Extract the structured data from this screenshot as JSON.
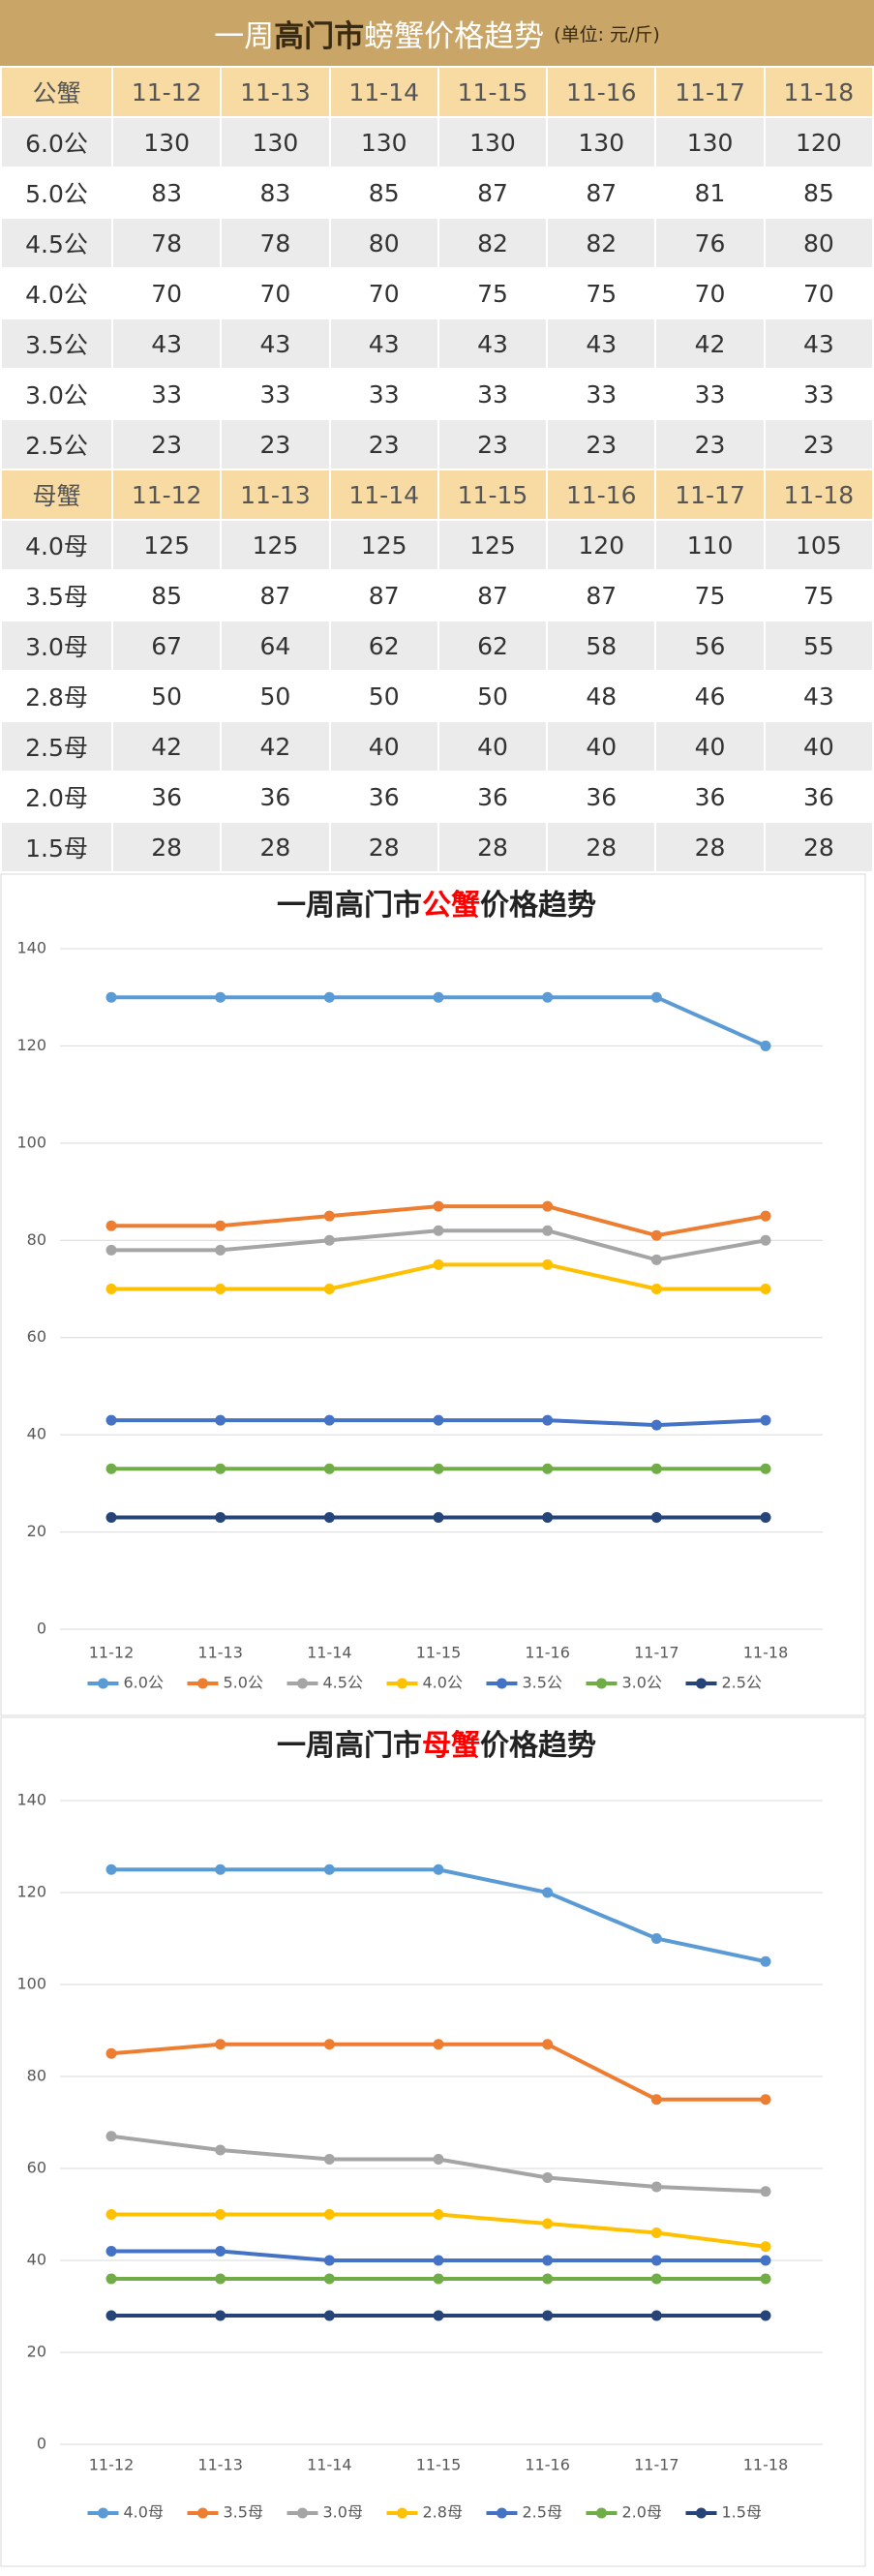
{
  "table": {
    "title": {
      "lead": "一周",
      "highlight": "高门市",
      "rest": "螃蟹价格趋势",
      "unit": "(单位: 元/斤)"
    },
    "sections": [
      {
        "header": [
          "公蟹",
          "11-12",
          "11-13",
          "11-14",
          "11-15",
          "11-16",
          "11-17",
          "11-18"
        ],
        "rows": [
          [
            "6.0公",
            130,
            130,
            130,
            130,
            130,
            130,
            120
          ],
          [
            "5.0公",
            83,
            83,
            85,
            87,
            87,
            81,
            85
          ],
          [
            "4.5公",
            78,
            78,
            80,
            82,
            82,
            76,
            80
          ],
          [
            "4.0公",
            70,
            70,
            70,
            75,
            75,
            70,
            70
          ],
          [
            "3.5公",
            43,
            43,
            43,
            43,
            43,
            42,
            43
          ],
          [
            "3.0公",
            33,
            33,
            33,
            33,
            33,
            33,
            33
          ],
          [
            "2.5公",
            23,
            23,
            23,
            23,
            23,
            23,
            23
          ]
        ]
      },
      {
        "header": [
          "母蟹",
          "11-12",
          "11-13",
          "11-14",
          "11-15",
          "11-16",
          "11-17",
          "11-18"
        ],
        "rows": [
          [
            "4.0母",
            125,
            125,
            125,
            125,
            120,
            110,
            105
          ],
          [
            "3.5母",
            85,
            87,
            87,
            87,
            87,
            75,
            75
          ],
          [
            "3.0母",
            67,
            64,
            62,
            62,
            58,
            56,
            55
          ],
          [
            "2.8母",
            50,
            50,
            50,
            50,
            48,
            46,
            43
          ],
          [
            "2.5母",
            42,
            42,
            40,
            40,
            40,
            40,
            40
          ],
          [
            "2.0母",
            36,
            36,
            36,
            36,
            36,
            36,
            36
          ],
          [
            "1.5母",
            28,
            28,
            28,
            28,
            28,
            28,
            28
          ]
        ]
      }
    ]
  },
  "chart_data": [
    {
      "type": "line",
      "title": [
        "一周高门市",
        "公蟹",
        "价格趋势"
      ],
      "title_highlight_color": "#ff0000",
      "categories": [
        "11-12",
        "11-13",
        "11-14",
        "11-15",
        "11-16",
        "11-17",
        "11-18"
      ],
      "ylim": [
        0,
        140
      ],
      "yticks": [
        0,
        20,
        40,
        60,
        80,
        100,
        120,
        140
      ],
      "grid": true,
      "legend": "bottom",
      "series": [
        {
          "name": "6.0公",
          "color": "#5b9bd5",
          "values": [
            130,
            130,
            130,
            130,
            130,
            130,
            120
          ]
        },
        {
          "name": "5.0公",
          "color": "#ed7d31",
          "values": [
            83,
            83,
            85,
            87,
            87,
            81,
            85
          ]
        },
        {
          "name": "4.5公",
          "color": "#a5a5a5",
          "values": [
            78,
            78,
            80,
            82,
            82,
            76,
            80
          ]
        },
        {
          "name": "4.0公",
          "color": "#ffc000",
          "values": [
            70,
            70,
            70,
            75,
            75,
            70,
            70
          ]
        },
        {
          "name": "3.5公",
          "color": "#4472c4",
          "values": [
            43,
            43,
            43,
            43,
            43,
            42,
            43
          ]
        },
        {
          "name": "3.0公",
          "color": "#70ad47",
          "values": [
            33,
            33,
            33,
            33,
            33,
            33,
            33
          ]
        },
        {
          "name": "2.5公",
          "color": "#264478",
          "values": [
            23,
            23,
            23,
            23,
            23,
            23,
            23
          ]
        }
      ]
    },
    {
      "type": "line",
      "title": [
        "一周高门市",
        "母蟹",
        "价格趋势"
      ],
      "title_highlight_color": "#ff0000",
      "categories": [
        "11-12",
        "11-13",
        "11-14",
        "11-15",
        "11-16",
        "11-17",
        "11-18"
      ],
      "ylim": [
        0,
        140
      ],
      "yticks": [
        0,
        20,
        40,
        60,
        80,
        100,
        120,
        140
      ],
      "grid": true,
      "legend": "bottom",
      "series": [
        {
          "name": "4.0母",
          "color": "#5b9bd5",
          "values": [
            125,
            125,
            125,
            125,
            120,
            110,
            105
          ]
        },
        {
          "name": "3.5母",
          "color": "#ed7d31",
          "values": [
            85,
            87,
            87,
            87,
            87,
            75,
            75
          ]
        },
        {
          "name": "3.0母",
          "color": "#a5a5a5",
          "values": [
            67,
            64,
            62,
            62,
            58,
            56,
            55
          ]
        },
        {
          "name": "2.8母",
          "color": "#ffc000",
          "values": [
            50,
            50,
            50,
            50,
            48,
            46,
            43
          ]
        },
        {
          "name": "2.5母",
          "color": "#4472c4",
          "values": [
            42,
            42,
            40,
            40,
            40,
            40,
            40
          ]
        },
        {
          "name": "2.0母",
          "color": "#70ad47",
          "values": [
            36,
            36,
            36,
            36,
            36,
            36,
            36
          ]
        },
        {
          "name": "1.5母",
          "color": "#264478",
          "values": [
            28,
            28,
            28,
            28,
            28,
            28,
            28
          ]
        }
      ]
    }
  ]
}
